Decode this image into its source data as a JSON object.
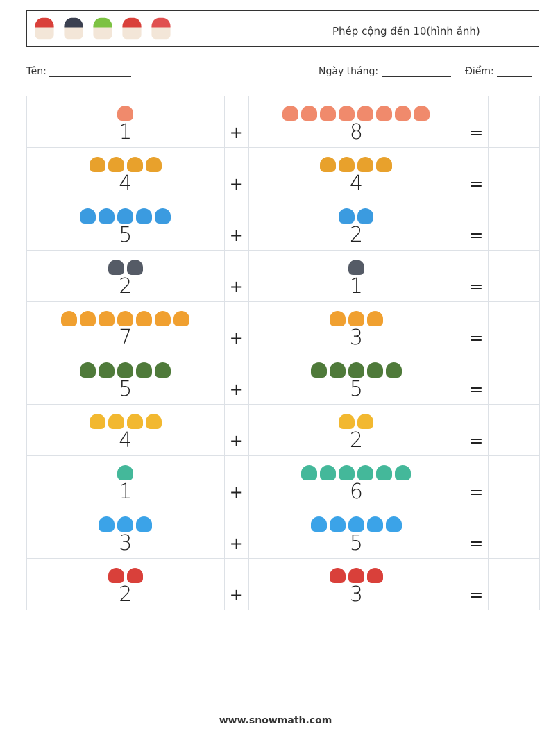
{
  "header": {
    "title": "Phép cộng đến 10(hình ảnh)",
    "icons": [
      "santa-icon",
      "string-lights-icon",
      "candles-icon",
      "sleigh-icon",
      "candy-cane-icon"
    ]
  },
  "form": {
    "name_label": "Tên:",
    "date_label": "Ngày tháng:",
    "score_label": "Điểm:"
  },
  "plus": "+",
  "equals": "=",
  "rows": [
    {
      "icon": "woman-icon",
      "color": "#f08a6c",
      "a": "1",
      "b": "8"
    },
    {
      "icon": "coin-icon",
      "color": "#e8a12c",
      "a": "4",
      "b": "4"
    },
    {
      "icon": "tractor-icon",
      "color": "#3b9be0",
      "a": "5",
      "b": "2"
    },
    {
      "icon": "string-lights-icon",
      "color": "#555b66",
      "a": "2",
      "b": "1"
    },
    {
      "icon": "tiger-icon",
      "color": "#f0a030",
      "a": "7",
      "b": "3"
    },
    {
      "icon": "soldier-icon",
      "color": "#4f7a3a",
      "a": "5",
      "b": "5"
    },
    {
      "icon": "medal-icon",
      "color": "#f2b830",
      "a": "4",
      "b": "2"
    },
    {
      "icon": "balloons-icon",
      "color": "#44b89a",
      "a": "1",
      "b": "6"
    },
    {
      "icon": "robot-icon",
      "color": "#3ba3e8",
      "a": "3",
      "b": "5"
    },
    {
      "icon": "santa-icon",
      "color": "#d9403a",
      "a": "2",
      "b": "3"
    }
  ],
  "footer": "www.snowmath.com"
}
